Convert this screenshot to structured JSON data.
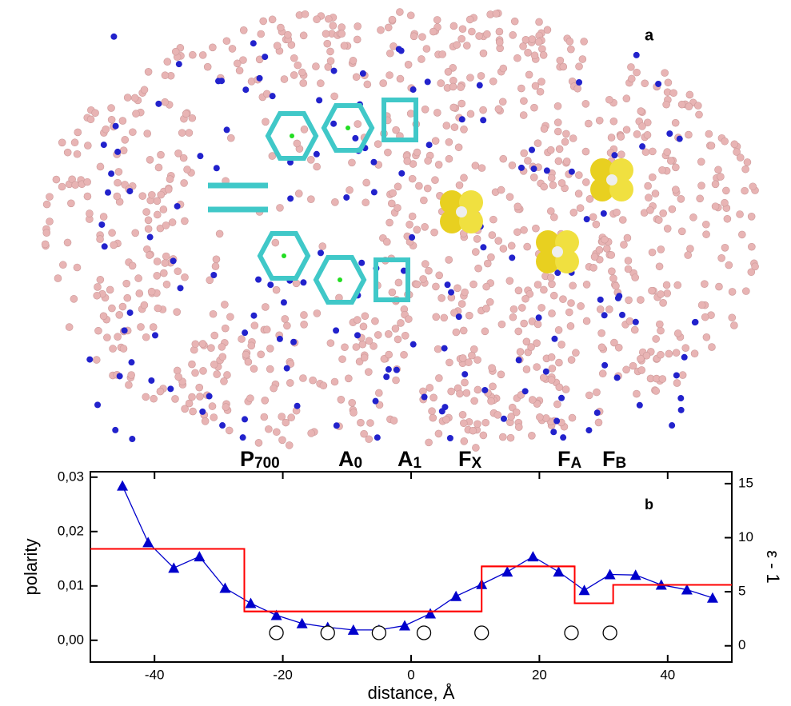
{
  "panel_a_label": "a",
  "sites": [
    {
      "text": "P",
      "sub": "700"
    },
    {
      "text": "A",
      "sub": "0"
    },
    {
      "text": "A",
      "sub": "1"
    },
    {
      "text": "F",
      "sub": "X"
    },
    {
      "text": "F",
      "sub": "A"
    },
    {
      "text": "F",
      "sub": "B"
    }
  ],
  "chart_data": {
    "type": "line",
    "annotation": "b",
    "x_label": "distance, Å",
    "y_label": "polarity",
    "y2_label": "ε - 1",
    "xlim": [
      -50,
      50
    ],
    "xticks": [
      -40,
      -20,
      0,
      20,
      40
    ],
    "ylim": [
      -0.004,
      0.031
    ],
    "yticks": [
      {
        "value": 0,
        "label": "0,00"
      },
      {
        "value": 0.01,
        "label": "0,01"
      },
      {
        "value": 0.02,
        "label": "0,02"
      },
      {
        "value": 0.03,
        "label": "0,03"
      }
    ],
    "y2lim": [
      -1.5,
      16.1
    ],
    "y2ticks": [
      0,
      5,
      10,
      15
    ],
    "series": [
      {
        "style": "line-triangle",
        "color": "#0000cc",
        "x": [
          -45,
          -41,
          -37,
          -33,
          -29,
          -25,
          -21,
          -17,
          -13,
          -9,
          -5,
          -1,
          3,
          7,
          11,
          15,
          19,
          23,
          27,
          31,
          35,
          39,
          43,
          47
        ],
        "values": [
          0.0284,
          0.018,
          0.0133,
          0.0154,
          0.0096,
          0.0068,
          0.0046,
          0.0031,
          0.0024,
          0.0019,
          0.0019,
          0.0027,
          0.0049,
          0.0081,
          0.0103,
          0.0126,
          0.0154,
          0.0126,
          0.0092,
          0.0121,
          0.012,
          0.0102,
          0.0093,
          0.0078
        ]
      },
      {
        "style": "step",
        "color": "#ff0000",
        "edges": [
          -50,
          -26,
          11,
          25.5,
          31.5,
          50
        ],
        "values": [
          0.0168,
          0.0053,
          0.0136,
          0.0068,
          0.0102
        ]
      },
      {
        "style": "circle",
        "color": "#000000",
        "axis": "y2",
        "x": [
          -21,
          -13,
          -5,
          2,
          11,
          25,
          31
        ],
        "values": [
          1.2,
          1.2,
          1.2,
          1.2,
          1.2,
          1.2,
          1.2
        ]
      }
    ]
  }
}
